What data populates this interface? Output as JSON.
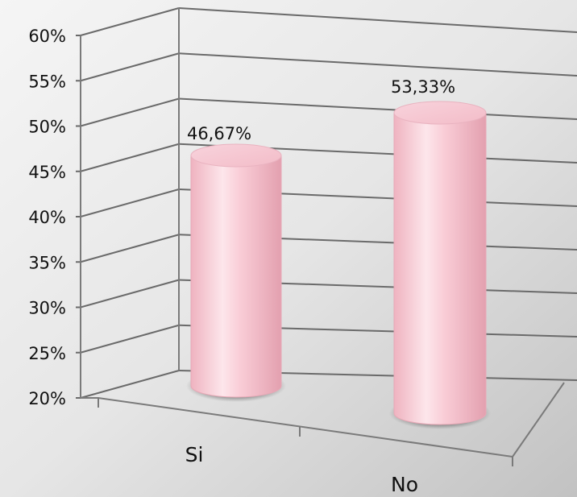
{
  "chart_data": {
    "type": "bar",
    "style": "3d-cylinder",
    "categories": [
      "Si",
      "No"
    ],
    "values": [
      46.67,
      53.33
    ],
    "data_labels": [
      "46,67%",
      "53,33%"
    ],
    "y_tick_labels": [
      "20%",
      "25%",
      "30%",
      "35%",
      "40%",
      "45%",
      "50%",
      "55%",
      "60%"
    ],
    "ylim": [
      20,
      60
    ],
    "y_step": 5,
    "grid": true,
    "legend": "none",
    "title": "",
    "xlabel": "",
    "ylabel": "",
    "colors": {
      "bar": "#f4b8c4",
      "bar_highlight": "#fde8ec",
      "bar_shadow": "#d98a9a",
      "gridline": "#555555",
      "background_light": "#f7f7f7",
      "background_dark": "#c4c4c4"
    }
  }
}
